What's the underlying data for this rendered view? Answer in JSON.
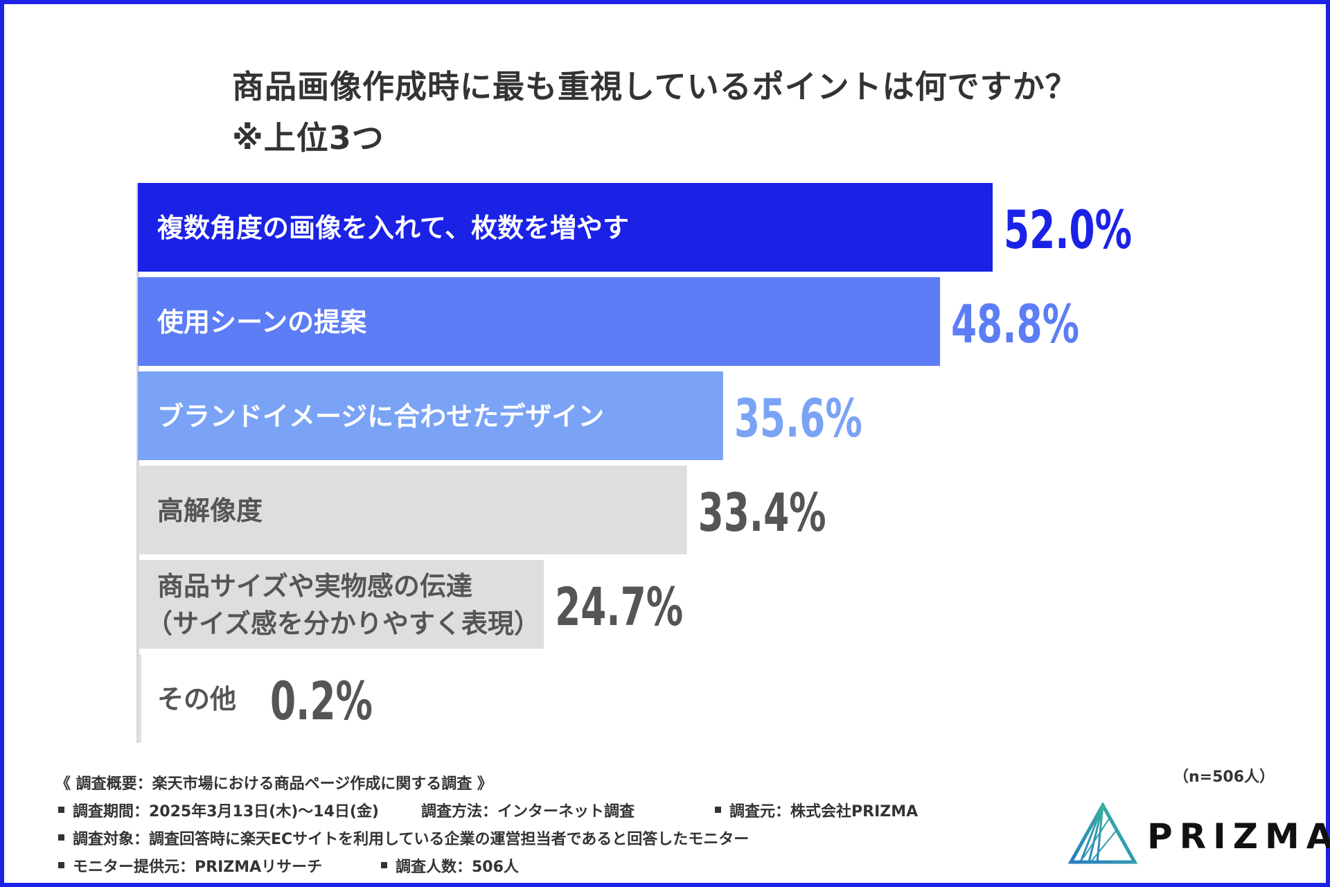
{
  "title": {
    "line1": "商品画像作成時に最も重視しているポイントは何ですか？",
    "line2": "※上位3つ"
  },
  "colors": {
    "border": "#1b22e6",
    "bar1": "#1b22e6",
    "bar2": "#5c7df5",
    "bar3": "#7aa3f5",
    "bar_gray": "#dedede",
    "gray_text": "#555555",
    "axis": "#d6d6d6"
  },
  "chart_data": {
    "type": "bar",
    "orientation": "horizontal",
    "categories": [
      "複数角度の画像を入れて、枚数を増やす",
      "使用シーンの提案",
      "ブランドイメージに合わせたデザイン",
      "高解像度",
      "商品サイズや実物感の伝達\n（サイズ感を分かりやすく表現）",
      "その他"
    ],
    "values": [
      52.0,
      48.8,
      35.6,
      33.4,
      24.7,
      0.2
    ],
    "value_labels": [
      "52.0%",
      "48.8%",
      "35.6%",
      "33.4%",
      "24.7%",
      "0.2%"
    ],
    "unit": "%",
    "bar_colors": [
      "#1b22e6",
      "#5c7df5",
      "#7aa3f5",
      "#dedede",
      "#dedede",
      "#dedede"
    ],
    "label_colors": [
      "#ffffff",
      "#ffffff",
      "#ffffff",
      "#555555",
      "#555555",
      "#555555"
    ],
    "value_colors": [
      "#1b22e6",
      "#5c7df5",
      "#7aa3f5",
      "#555555",
      "#555555",
      "#555555"
    ],
    "xlim": [
      0,
      52
    ]
  },
  "sample_size": "（n=506人）",
  "notes": {
    "header": "《 調査概要：楽天市場における商品ページ作成に関する調査 》",
    "period": "調査期間：2025年3月13日(木)〜14日(金)",
    "method": "調査方法：インターネット調査",
    "source": "調査元：株式会社PRIZMA",
    "target": "調査対象：調査回答時に楽天ECサイトを利用している企業の運営担当者であると回答したモニター",
    "provider": "モニター提供元：PRIZMAリサーチ",
    "count": "調査人数：506人"
  },
  "logo": {
    "name": "PRIZMA",
    "mark": "prism-triangle-logo"
  }
}
